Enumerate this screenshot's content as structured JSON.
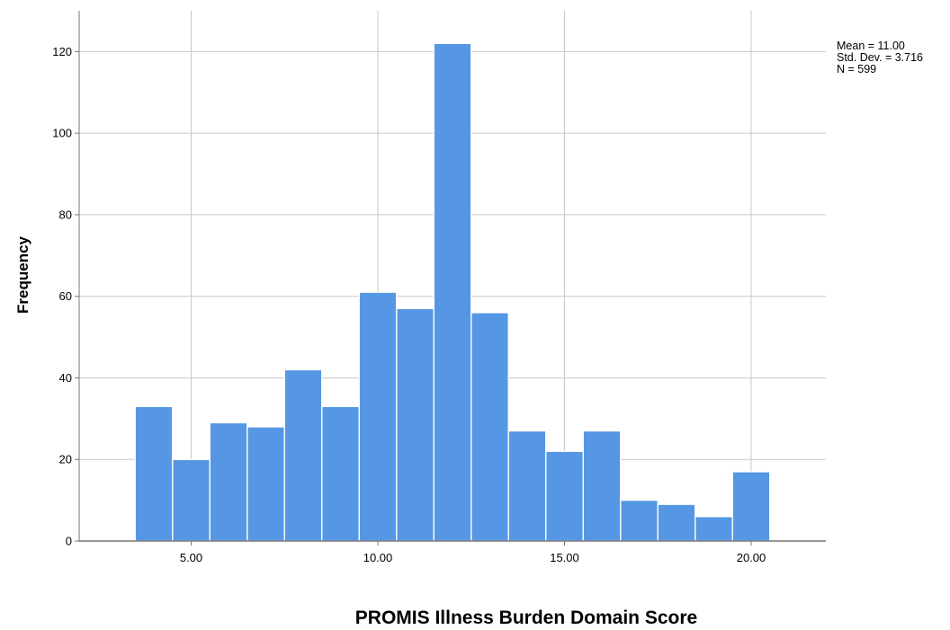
{
  "chart_data": {
    "type": "bar",
    "subtype": "histogram",
    "title": "",
    "xlabel": "PROMIS Illness Burden Domain Score",
    "ylabel": "Frequency",
    "xlim": [
      2.0,
      22.0
    ],
    "ylim": [
      0,
      130
    ],
    "bin_width": 1.0,
    "bins_start": [
      3.5,
      4.5,
      5.5,
      6.5,
      7.5,
      8.5,
      9.5,
      10.5,
      11.5,
      12.5,
      13.5,
      14.5,
      15.5,
      16.5,
      17.5,
      18.5,
      19.5
    ],
    "values": [
      33,
      20,
      29,
      28,
      42,
      33,
      61,
      57,
      122,
      56,
      27,
      22,
      27,
      10,
      9,
      6,
      17
    ],
    "x_ticks": [
      5,
      10,
      15,
      20
    ],
    "x_tick_labels": [
      "5.00",
      "10.00",
      "15.00",
      "20.00"
    ],
    "y_ticks": [
      0,
      20,
      40,
      60,
      80,
      100,
      120
    ],
    "y_tick_labels": [
      "0",
      "20",
      "40",
      "60",
      "80",
      "100",
      "120"
    ],
    "grid": true,
    "bar_color": "#5597E5",
    "grid_color": "#C8C8C8",
    "legend": "none",
    "stats": {
      "mean": "Mean = 11.00",
      "std": "Std. Dev. = 3.716",
      "n": "N = 599"
    }
  }
}
